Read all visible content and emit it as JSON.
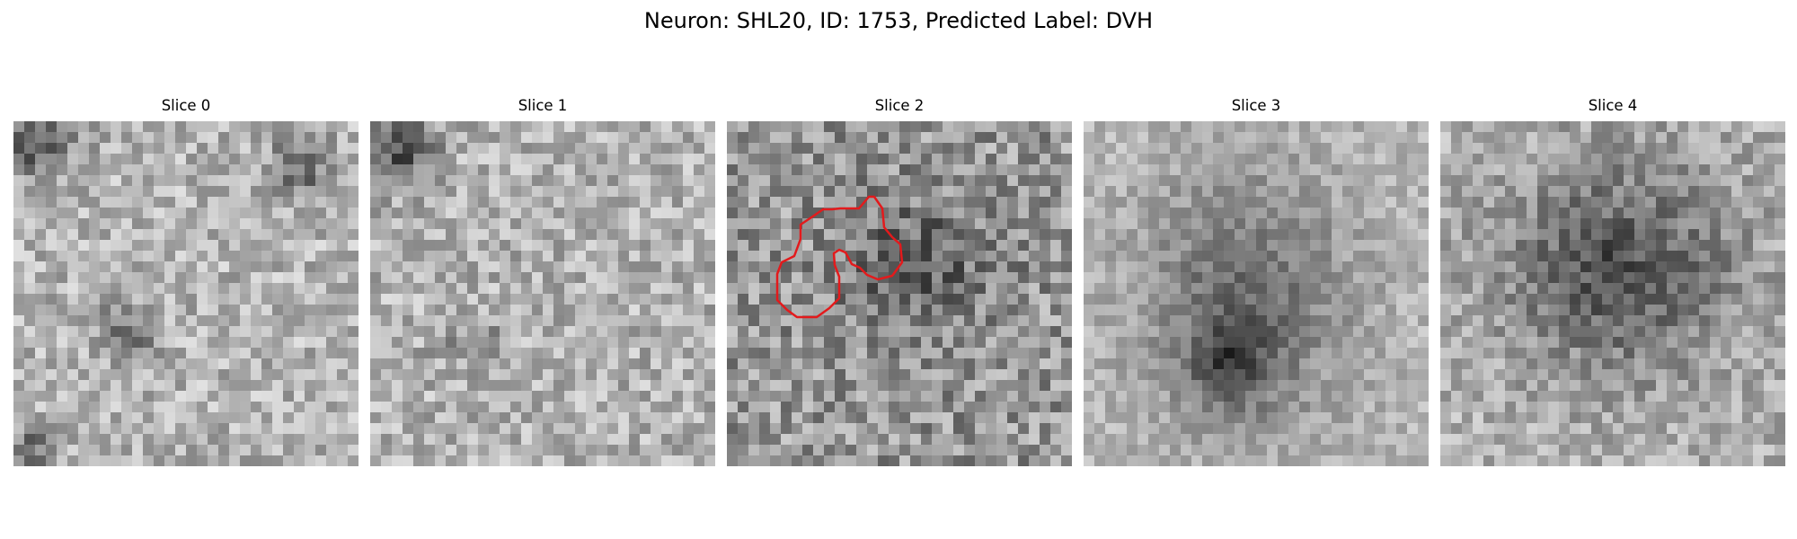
{
  "figure": {
    "title": "Neuron: SHL20, ID: 1753, Predicted Label: DVH"
  },
  "slices": [
    {
      "title": "Slice 0",
      "icon": "grayscale-noise-image"
    },
    {
      "title": "Slice 1",
      "icon": "grayscale-noise-image"
    },
    {
      "title": "Slice 2",
      "icon": "grayscale-noise-image",
      "overlay": "neuron-outline"
    },
    {
      "title": "Slice 3",
      "icon": "grayscale-noise-image"
    },
    {
      "title": "Slice 4",
      "icon": "grayscale-noise-image"
    }
  ],
  "colors": {
    "outline": "#e31a1c",
    "background": "#ffffff"
  }
}
